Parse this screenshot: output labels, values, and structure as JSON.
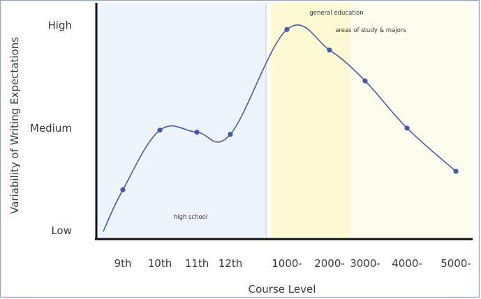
{
  "chart_data": {
    "type": "line",
    "title": "",
    "xlabel": "Course Level",
    "ylabel": "Variability of Writing Expectations",
    "ytick_labels": [
      {
        "label": "High",
        "value": 1.0
      },
      {
        "label": "Medium",
        "value": 0.5
      },
      {
        "label": "Low",
        "value": 0.0
      }
    ],
    "ylim": [
      -0.04,
      1.11
    ],
    "categories": [
      "9th",
      "10th",
      "11th",
      "12th",
      "1000-",
      "2000-",
      "3000-",
      "4000-",
      "5000-"
    ],
    "series": [
      {
        "values": [
          0.2,
          0.49,
          0.48,
          0.47,
          0.98,
          0.88,
          0.73,
          0.5,
          0.29
        ],
        "color": "#4a5aa8"
      }
    ],
    "regions": [
      {
        "label": "high school",
        "from": "9th",
        "to": "12th",
        "color": "#eef4fb"
      },
      {
        "label": "general education",
        "from": "1000-",
        "to": "2000-",
        "color": "#fbfad5"
      },
      {
        "label": "areas of study & majors",
        "from": "2000-",
        "to": "5000-",
        "color": "#fdfdef"
      }
    ],
    "grid": false,
    "legend": "none"
  }
}
